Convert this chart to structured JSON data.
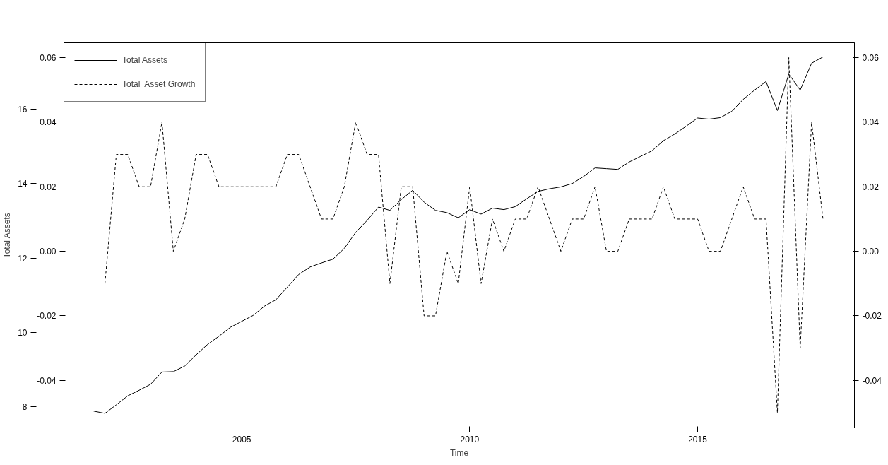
{
  "chart_data": {
    "type": "line",
    "xlabel": "Time",
    "ylabel": "Total Assets",
    "xlim": [
      2001.1,
      2018.44
    ],
    "xticks": [
      2005,
      2010,
      2015
    ],
    "ylim": [
      7.44,
      17.78
    ],
    "yticks": [
      8,
      10,
      12,
      14,
      16
    ],
    "y2lim": [
      -0.0547,
      0.0646
    ],
    "y2ticks": [
      -0.04,
      -0.02,
      {
        "value": 0,
        "label": "0.00"
      },
      0.02,
      0.04,
      0.06
    ],
    "y3lim": [
      -0.0547,
      0.0646
    ],
    "y3ticks": [
      -0.04,
      -0.02,
      {
        "value": 0,
        "label": "0.00"
      },
      0.02,
      0.04,
      0.06
    ],
    "grid": false,
    "legend": "top left",
    "marker": "none",
    "series": [
      {
        "name": "Total Assets",
        "color": "#000000",
        "line_style": "solid",
        "x": [
          2001.75,
          2002.0,
          2002.25,
          2002.5,
          2002.75,
          2003.0,
          2003.25,
          2003.5,
          2003.75,
          2004.0,
          2004.25,
          2004.5,
          2004.75,
          2005.0,
          2005.25,
          2005.5,
          2005.75,
          2006.0,
          2006.25,
          2006.5,
          2006.75,
          2007.0,
          2007.25,
          2007.5,
          2007.75,
          2008.0,
          2008.25,
          2008.5,
          2008.75,
          2009.0,
          2009.25,
          2009.5,
          2009.75,
          2010.0,
          2010.25,
          2010.5,
          2010.75,
          2011.0,
          2011.25,
          2011.5,
          2011.75,
          2012.0,
          2012.25,
          2012.5,
          2012.75,
          2013.0,
          2013.25,
          2013.5,
          2013.75,
          2014.0,
          2014.25,
          2014.5,
          2014.75,
          2015.0,
          2015.25,
          2015.5,
          2015.75,
          2016.0,
          2016.25,
          2016.5,
          2016.75,
          2017.0,
          2017.25,
          2017.5,
          2017.75
        ],
        "values": [
          7.89,
          7.83,
          8.06,
          8.3,
          8.45,
          8.61,
          8.94,
          8.95,
          9.1,
          9.4,
          9.68,
          9.9,
          10.14,
          10.3,
          10.46,
          10.71,
          10.88,
          11.22,
          11.56,
          11.76,
          11.87,
          11.97,
          12.26,
          12.69,
          13.01,
          13.37,
          13.28,
          13.57,
          13.82,
          13.5,
          13.28,
          13.22,
          13.08,
          13.3,
          13.18,
          13.34,
          13.3,
          13.38,
          13.59,
          13.79,
          13.86,
          13.91,
          14.0,
          14.19,
          14.42,
          14.4,
          14.38,
          14.58,
          14.73,
          14.88,
          15.15,
          15.33,
          15.54,
          15.76,
          15.73,
          15.77,
          15.94,
          16.26,
          16.51,
          16.74,
          15.96,
          16.94,
          16.51,
          17.23,
          17.4
        ]
      },
      {
        "name": "Total  Asset Growth",
        "color": "#000000",
        "line_style": "dashed",
        "axis": "y2",
        "x": [
          2002.0,
          2002.25,
          2002.5,
          2002.75,
          2003.0,
          2003.25,
          2003.5,
          2003.75,
          2004.0,
          2004.25,
          2004.5,
          2004.75,
          2005.0,
          2005.25,
          2005.5,
          2005.75,
          2006.0,
          2006.25,
          2006.5,
          2006.75,
          2007.0,
          2007.25,
          2007.5,
          2007.75,
          2008.0,
          2008.25,
          2008.5,
          2008.75,
          2009.0,
          2009.25,
          2009.5,
          2009.75,
          2010.0,
          2010.25,
          2010.5,
          2010.75,
          2011.0,
          2011.25,
          2011.5,
          2011.75,
          2012.0,
          2012.25,
          2012.5,
          2012.75,
          2013.0,
          2013.25,
          2013.5,
          2013.75,
          2014.0,
          2014.25,
          2014.5,
          2014.75,
          2015.0,
          2015.25,
          2015.5,
          2015.75,
          2016.0,
          2016.25,
          2016.5,
          2016.75,
          2017.0,
          2017.25,
          2017.5,
          2017.75
        ],
        "values": [
          -0.01,
          0.03,
          0.03,
          0.02,
          0.02,
          0.04,
          0.0,
          0.01,
          0.03,
          0.03,
          0.02,
          0.02,
          0.02,
          0.02,
          0.02,
          0.02,
          0.03,
          0.03,
          0.02,
          0.01,
          0.01,
          0.02,
          0.04,
          0.03,
          0.03,
          -0.01,
          0.02,
          0.02,
          -0.02,
          -0.02,
          0.0,
          -0.01,
          0.02,
          -0.01,
          0.01,
          0.0,
          0.01,
          0.01,
          0.02,
          0.01,
          0.0,
          0.01,
          0.01,
          0.02,
          0.0,
          0.0,
          0.01,
          0.01,
          0.01,
          0.02,
          0.01,
          0.01,
          0.01,
          0.0,
          0.0,
          0.01,
          0.02,
          0.01,
          0.01,
          -0.05,
          0.06,
          -0.03,
          0.04,
          0.01
        ]
      }
    ]
  }
}
